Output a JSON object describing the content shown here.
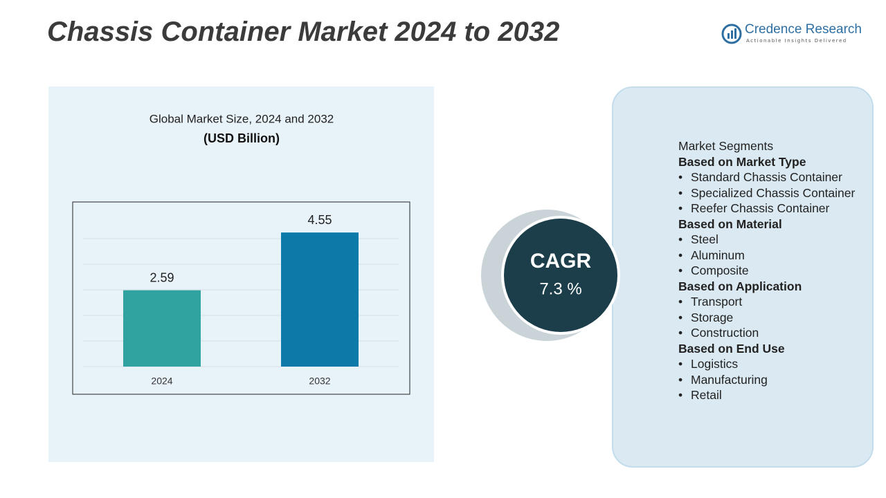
{
  "header": {
    "title": "Chassis Container Market 2024 to 2032",
    "logo_name": "Credence Research",
    "logo_tagline": "Actionable Insights Delivered"
  },
  "chart_data": {
    "type": "bar",
    "title": "Global Market Size, 2024 and 2032",
    "subtitle": "(USD Billion)",
    "categories": [
      "2024",
      "2032"
    ],
    "values": [
      2.59,
      4.55
    ],
    "colors": [
      "#30a3a1",
      "#0b7aa9"
    ],
    "ylim": [
      0,
      5
    ]
  },
  "cagr": {
    "label": "CAGR",
    "value": "7.3 %"
  },
  "segments": {
    "title": "Market Segments",
    "groups": [
      {
        "heading": "Based on Market Type",
        "items": [
          "Standard Chassis Container",
          "Specialized Chassis Container",
          "Reefer Chassis Container"
        ]
      },
      {
        "heading": "Based on Material",
        "items": [
          "Steel",
          "Aluminum",
          "Composite"
        ]
      },
      {
        "heading": "Based on Application",
        "items": [
          "Transport",
          "Storage",
          "Construction"
        ]
      },
      {
        "heading": "Based on End Use",
        "items": [
          "Logistics",
          "Manufacturing",
          "Retail"
        ]
      }
    ]
  }
}
